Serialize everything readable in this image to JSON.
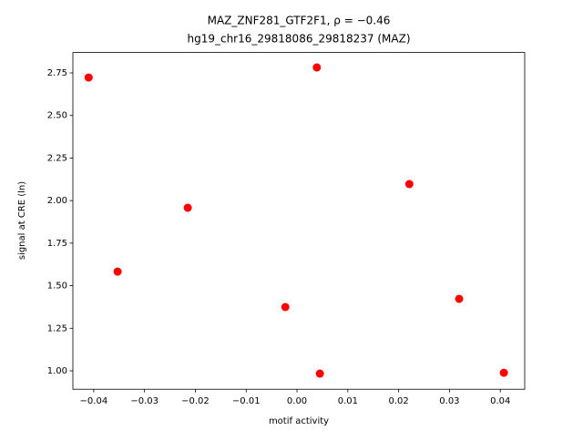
{
  "chart_data": {
    "type": "scatter",
    "title": "MAZ_ZNF281_GTF2F1, ρ = −0.46",
    "subtitle": "hg19_chr16_29818086_29818237 (MAZ)",
    "x_label": "motif activity",
    "y_label": "signal at CRE (ln)",
    "color": "#ff0000",
    "x": [
      -0.041,
      -0.0353,
      -0.0215,
      -0.0023,
      0.0039,
      0.0045,
      0.0221,
      0.0319,
      0.0407
    ],
    "values": [
      2.723,
      1.583,
      1.958,
      1.375,
      2.782,
      0.984,
      2.097,
      1.423,
      0.989
    ],
    "xlim": [
      -0.0441,
      0.0448
    ],
    "ylim": [
      0.892,
      2.87
    ],
    "xticks": [
      {
        "value": -0.04,
        "label": "−0.04"
      },
      {
        "value": -0.03,
        "label": "−0.03"
      },
      {
        "value": -0.02,
        "label": "−0.02"
      },
      {
        "value": -0.01,
        "label": "−0.01"
      },
      {
        "value": 0,
        "label": "0.00"
      },
      0.01,
      0.02,
      0.03,
      0.04
    ],
    "yticks": [
      {
        "value": 1,
        "label": "1.00"
      },
      1.25,
      {
        "value": 1.5,
        "label": "1.50"
      },
      1.75,
      {
        "value": 2,
        "label": "2.00"
      },
      2.25,
      {
        "value": 2.5,
        "label": "2.50"
      },
      2.75
    ]
  }
}
